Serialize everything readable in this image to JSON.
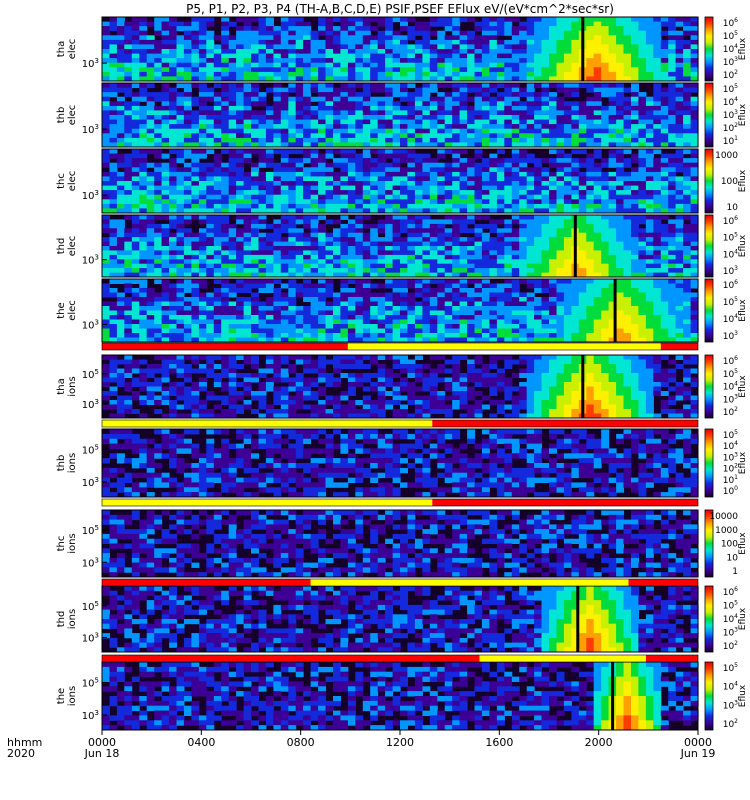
{
  "chart_data": {
    "type": "heatmap",
    "title": "P5, P1, P2, P3, P4 (TH-A,B,C,D,E) PSIF,PSEF EFlux eV/(eV*cm^2*sec*sr)",
    "x_label_line1": "hhmm",
    "x_label_line2": "2020",
    "x_ticks": [
      {
        "time": "0000",
        "date": "Jun 18"
      },
      {
        "time": "0400",
        "date": ""
      },
      {
        "time": "0800",
        "date": ""
      },
      {
        "time": "1200",
        "date": ""
      },
      {
        "time": "1600",
        "date": ""
      },
      {
        "time": "2000",
        "date": ""
      },
      {
        "time": "0000",
        "date": "Jun 19"
      }
    ],
    "x_range_hours": [
      0,
      24
    ],
    "colorbar_label": "Eflux",
    "colorscale": [
      "#140028",
      "#3c0096",
      "#1428dc",
      "#0096ff",
      "#00e6d2",
      "#00dc3c",
      "#c8f000",
      "#fff000",
      "#ffa000",
      "#ff3c00",
      "#e60000"
    ],
    "background_color": "#140028",
    "panels": [
      {
        "probe": "tha",
        "species": "elec",
        "label1": "tha",
        "label2": "elec",
        "y_ticks": [
          "10^3"
        ],
        "colorbar_ticks": [
          "10^6",
          "10^5",
          "10^4",
          "10^3",
          "10^2"
        ],
        "shadow_intervals": [],
        "hot_bands": [
          [
            17,
            22.5,
            1.0
          ]
        ],
        "gaps": [
          19.3
        ]
      },
      {
        "probe": "thb",
        "species": "elec",
        "label1": "thb",
        "label2": "elec",
        "y_ticks": [
          "10^3"
        ],
        "colorbar_ticks": [
          "10^5",
          "10^4",
          "10^3",
          "10^2",
          "10^1"
        ],
        "shadow_intervals": [],
        "hot_bands": [],
        "gaps": []
      },
      {
        "probe": "thc",
        "species": "elec",
        "label1": "thc",
        "label2": "elec",
        "y_ticks": [
          "10^3"
        ],
        "colorbar_ticks": [
          "1000",
          "100",
          "10"
        ],
        "shadow_intervals": [],
        "hot_bands": [],
        "gaps": []
      },
      {
        "probe": "thd",
        "species": "elec",
        "label1": "thd",
        "label2": "elec",
        "y_ticks": [
          "10^3"
        ],
        "colorbar_ticks": [
          "10^6",
          "10^5",
          "10^4",
          "10^3"
        ],
        "shadow_intervals": [],
        "hot_bands": [
          [
            16.5,
            21.5,
            0.9
          ]
        ],
        "gaps": [
          19.0
        ]
      },
      {
        "probe": "the",
        "species": "elec",
        "label1": "the",
        "label2": "elec",
        "y_ticks": [
          "10^3"
        ],
        "colorbar_ticks": [
          "10^6",
          "10^5",
          "10^4",
          "10^3"
        ],
        "shadow_intervals": [],
        "hot_bands": [
          [
            18,
            23.5,
            0.9
          ]
        ],
        "gaps": [
          20.6
        ]
      },
      {
        "probe": "tha",
        "species": "ions",
        "label1": "tha",
        "label2": "ions",
        "y_ticks": [
          "10^5",
          "10^3"
        ],
        "colorbar_ticks": [
          "10^6",
          "10^5",
          "10^4",
          "10^3",
          "10^2"
        ],
        "shadow_intervals": [
          [
            0,
            9.9,
            "red"
          ],
          [
            9.9,
            22.5,
            "yellow"
          ],
          [
            22.5,
            24,
            "red"
          ]
        ],
        "hot_bands": [
          [
            17,
            22,
            1.0
          ]
        ],
        "gaps": [
          19.3
        ]
      },
      {
        "probe": "thb",
        "species": "ions",
        "label1": "thb",
        "label2": "ions",
        "y_ticks": [
          "10^5",
          "10^3"
        ],
        "colorbar_ticks": [
          "10^5",
          "10^4",
          "10^3",
          "10^2",
          "10^1",
          "10^0"
        ],
        "shadow_intervals": [
          [
            0,
            13.3,
            "yellow"
          ],
          [
            13.3,
            24,
            "red"
          ]
        ],
        "hot_bands": [],
        "gaps": []
      },
      {
        "probe": "thc",
        "species": "ions",
        "label1": "thc",
        "label2": "ions",
        "y_ticks": [
          "10^5",
          "10^3"
        ],
        "colorbar_ticks": [
          "10000",
          "1000",
          "100",
          "10",
          "1"
        ],
        "shadow_intervals": [
          [
            0,
            13.3,
            "yellow"
          ],
          [
            13.3,
            24,
            "red"
          ]
        ],
        "hot_bands": [],
        "gaps": []
      },
      {
        "probe": "thd",
        "species": "ions",
        "label1": "thd",
        "label2": "ions",
        "y_ticks": [
          "10^5",
          "10^3"
        ],
        "colorbar_ticks": [
          "10^6",
          "10^5",
          "10^4",
          "10^3",
          "10^2"
        ],
        "shadow_intervals": [
          [
            0,
            8.4,
            "red"
          ],
          [
            8.4,
            21.2,
            "yellow"
          ],
          [
            21.2,
            24,
            "red"
          ]
        ],
        "hot_bands": [
          [
            17.5,
            21.5,
            1.0
          ]
        ],
        "gaps": [
          19.1
        ]
      },
      {
        "probe": "the",
        "species": "ions",
        "label1": "the",
        "label2": "ions",
        "y_ticks": [
          "10^5",
          "10^3"
        ],
        "colorbar_ticks": [
          "10^5",
          "10^4",
          "10^3",
          "10^2"
        ],
        "shadow_intervals": [
          [
            0,
            15.2,
            "red"
          ],
          [
            15.2,
            21.9,
            "yellow"
          ],
          [
            21.9,
            24,
            "red"
          ]
        ],
        "hot_bands": [
          [
            19.5,
            22.5,
            1.0
          ]
        ],
        "gaps": [
          20.5
        ]
      }
    ]
  }
}
